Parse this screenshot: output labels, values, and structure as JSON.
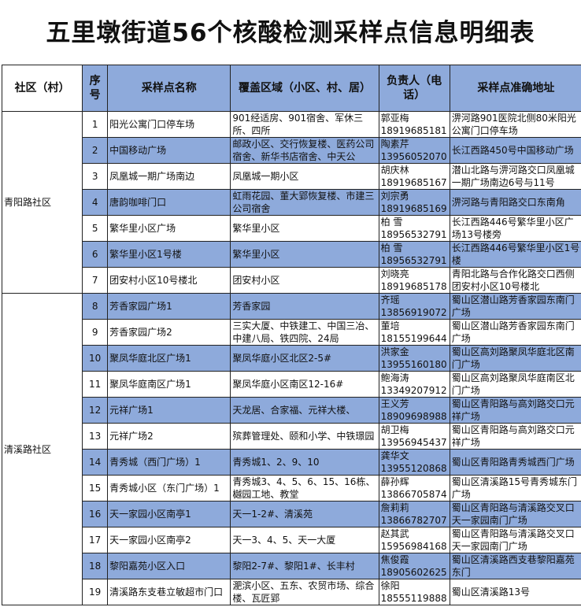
{
  "title": "五里墩街道56个核酸检测采样点信息明细表",
  "colors": {
    "header_bg": "#8eaadb",
    "alt_row_bg": "#8eaadb"
  },
  "headers": [
    "社区（村）",
    "序号",
    "采样点名称",
    "覆盖区域（小区、村、居）",
    "负责人（电话）",
    "采样点准确地址"
  ],
  "communities": [
    {
      "name": "青阳路社区",
      "rows": [
        {
          "no": "1",
          "site": "阳光公寓门口停车场",
          "area": "901经适房、901宿舍、军休三所、四所",
          "person": "郭亚梅",
          "phone": "18919685181",
          "address": "淠河路901医院北侧80米阳光公寓门口停车场"
        },
        {
          "no": "2",
          "site": "中国移动广场",
          "area": "邮政小区、交行恢复楼、医药公司宿舍、新华书店宿舍、中天公",
          "person": "陶素芹",
          "phone": "13956052070",
          "address": "长江西路450号中国移动广场"
        },
        {
          "no": "3",
          "site": "凤凰城一期广场南边",
          "area": "凤凰城一期小区",
          "person": "胡庆林",
          "phone": "18919685167",
          "address": "潜山北路与淠河路交口凤凰城一期广场南边6号与11号"
        },
        {
          "no": "4",
          "site": "唐韵咖啡门口",
          "area": "虹雨花园、董大郢恢复楼、市建三公司宿舍",
          "person": "刘宗勇",
          "phone": "18919685169",
          "address": "淠河路与青阳路交口东南角"
        },
        {
          "no": "5",
          "site": "繁华里小区广场",
          "area": "繁华里小区",
          "person": "柏 雪",
          "phone": "18956532791",
          "address": "长江西路446号繁华里小区广场13号楼旁"
        },
        {
          "no": "6",
          "site": "繁华里小区1号楼",
          "area": "繁华里小区",
          "person": "柏 雪",
          "phone": "18956532791",
          "address": "长江西路446号繁华里小区1号楼"
        },
        {
          "no": "7",
          "site": "团安村小区10号楼北",
          "area": "团安村小区",
          "person": "刘晓亮",
          "phone": "18919685178",
          "address": "青阳北路与合作化路交口西侧团安村小区10号楼北"
        }
      ]
    },
    {
      "name": "清溪路社区",
      "rows": [
        {
          "no": "8",
          "site": "芳香家园广场1",
          "area": "芳香家园",
          "person": "齐瑶",
          "phone": "13856919072",
          "address": "蜀山区潜山路芳香家园东南门广场"
        },
        {
          "no": "9",
          "site": "芳香家园广场2",
          "area": "三实大厦、中铁建工、中国三冶、中建八局、铁四院、24局",
          "person": "董培",
          "phone": "18155199644",
          "address": "蜀山区潜山路芳香家园东南门广场"
        },
        {
          "no": "10",
          "site": "聚凤华庭北区广场1",
          "area": "聚凤华庭小区北区2-5#",
          "person": "洪家金",
          "phone": "13955160180",
          "address": "蜀山区高刘路聚凤华庭北区南门广场"
        },
        {
          "no": "11",
          "site": "聚凤华庭南区广场1",
          "area": "聚凤华庭小区南区12-16#",
          "person": "鲍海涛",
          "phone": "13349207912",
          "address": "蜀山区高刘路聚凤华庭南区北门广场"
        },
        {
          "no": "12",
          "site": "元祥广场1",
          "area": "天龙居、合家福、元祥大楼、",
          "person": "王义芳",
          "phone": "18909698988",
          "address": "蜀山区青阳路与高刘路交口元祥广场"
        },
        {
          "no": "13",
          "site": "元祥广场2",
          "area": "殡葬管理处、颐和小学、中铁璟园",
          "person": "胡卫梅",
          "phone": "13956945437",
          "address": "蜀山区青阳路与高刘路交口元祥广场"
        },
        {
          "no": "14",
          "site": "青秀城（西门广场）1",
          "area": "青秀城1、2、9、10",
          "person": "龚华文",
          "phone": "13955120868",
          "address": "蜀山区青阳路青秀城西门广场"
        },
        {
          "no": "15",
          "site": "青秀城小区（东门广场）1",
          "area": "青秀城3、4、5、6、15、16栋、樾园工地、教堂",
          "person": "薛孙辉",
          "phone": "13866705874",
          "address": "蜀山区清溪路15号青秀城东门广场"
        },
        {
          "no": "16",
          "site": "天一家园小区南亭1",
          "area": "天一1-2#、清溪苑",
          "person": "詹莉莉",
          "phone": "13866782707",
          "address": "蜀山区青阳路与清溪路交叉口天一家园南门广场"
        },
        {
          "no": "17",
          "site": "天一家园小区南亭2",
          "area": "天一3、4、5、天一大厦",
          "person": "赵其武",
          "phone": "15956984168",
          "address": "蜀山区青阳路与清溪路交叉口天一家园南门广场"
        },
        {
          "no": "18",
          "site": "黎阳嘉苑小区入口",
          "area": "黎阳2-7#、黎阳1#、长丰村",
          "person": "焦俊霞",
          "phone": "18905602625",
          "address": "蜀山区清溪路西支巷黎阳嘉苑东门"
        },
        {
          "no": "19",
          "site": "清溪路东支巷立敏超市门口",
          "area": "淝滨小区、五东、农贸市场、综合楼、瓦匠郢",
          "person": "徐阳",
          "phone": "18555119888",
          "address": "蜀山区清溪路13号"
        }
      ]
    }
  ]
}
